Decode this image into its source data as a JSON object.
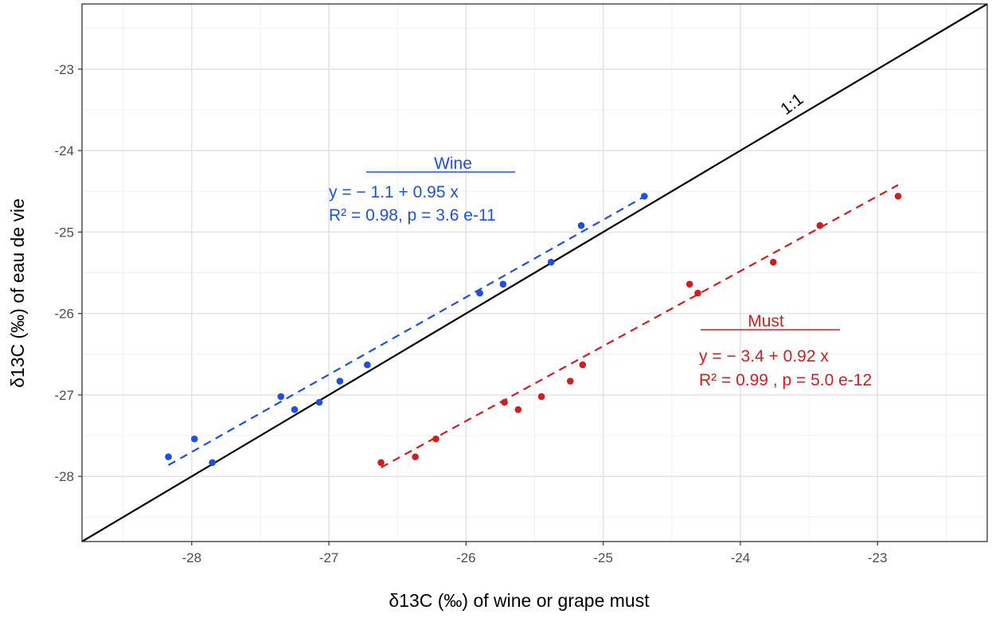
{
  "chart_data": {
    "type": "scatter",
    "xlabel": "δ13C (‰) of wine or grape must",
    "ylabel": "δ13C (‰) of eau de vie",
    "x_ticks": [
      "-28",
      "-27",
      "-26",
      "-25",
      "-24",
      "-23"
    ],
    "y_ticks": [
      "-28",
      "-27",
      "-26",
      "-25",
      "-24",
      "-23"
    ],
    "xlim": [
      -28.8,
      -22.2
    ],
    "ylim": [
      -28.8,
      -22.2
    ],
    "grid": true,
    "identity_line_label": "1:1",
    "series": [
      {
        "name": "Wine",
        "color": "#1f4fe0",
        "x": [
          -28.17,
          -27.98,
          -27.85,
          -27.35,
          -27.25,
          -27.07,
          -26.92,
          -26.72,
          -25.9,
          -25.73,
          -25.38,
          -25.16,
          -24.7
        ],
        "y": [
          -27.76,
          -27.54,
          -27.83,
          -27.02,
          -27.18,
          -27.09,
          -26.83,
          -26.63,
          -25.75,
          -25.64,
          -25.37,
          -24.92,
          -24.56
        ],
        "fit": {
          "intercept": -1.1,
          "slope": 0.95,
          "x_range": [
            -28.17,
            -24.7
          ]
        },
        "equation": "y = − 1.1 + 0.95 x",
        "stats": "R² = 0.98, p = 3.6 e-11"
      },
      {
        "name": "Must",
        "color": "#cc1f1f",
        "x": [
          -26.62,
          -26.37,
          -26.22,
          -25.72,
          -25.62,
          -25.45,
          -25.24,
          -25.15,
          -24.37,
          -24.31,
          -23.76,
          -23.42,
          -22.85
        ],
        "y": [
          -27.83,
          -27.76,
          -27.54,
          -27.09,
          -27.18,
          -27.02,
          -26.83,
          -26.63,
          -25.64,
          -25.75,
          -25.37,
          -24.92,
          -24.56
        ],
        "fit": {
          "intercept": -3.4,
          "slope": 0.92,
          "x_range": [
            -26.62,
            -22.85
          ]
        },
        "equation": "y = − 3.4 + 0.92 x",
        "stats": "R² = 0.99 , p = 5.0 e-12"
      }
    ]
  }
}
